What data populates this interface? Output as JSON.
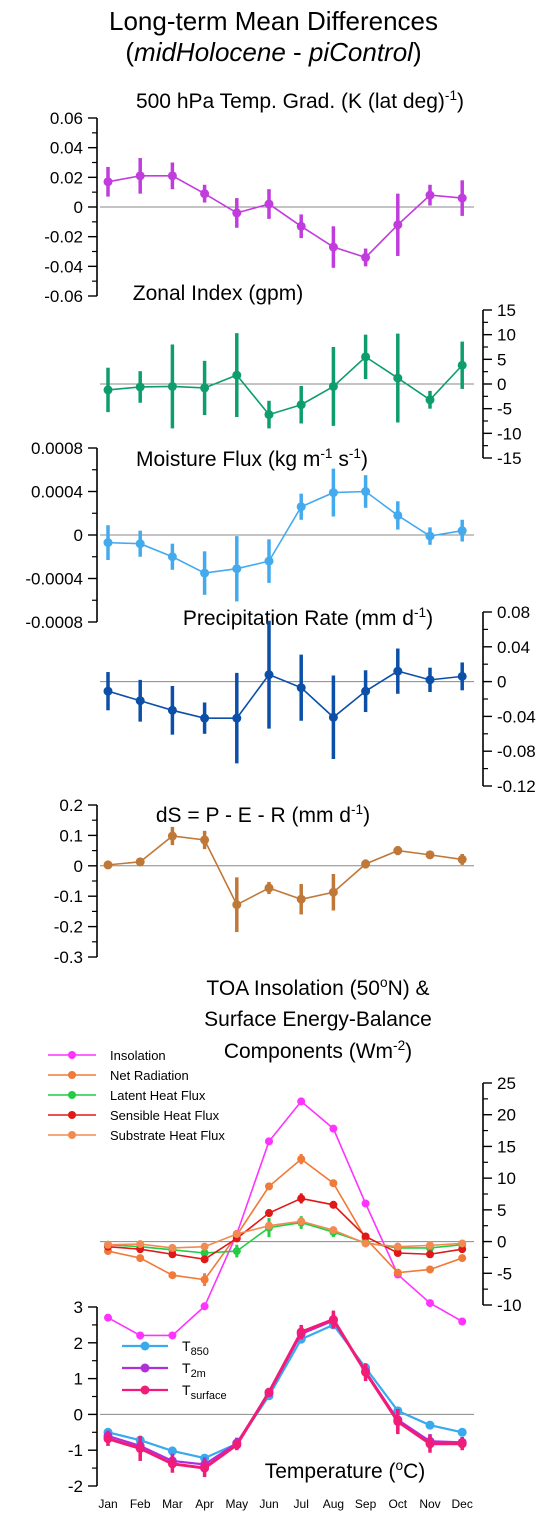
{
  "figure": {
    "title_line1": "Long-term Mean Differences",
    "title_line2": "(midHolocene - piControl)"
  },
  "months": [
    "Jan",
    "Feb",
    "Mar",
    "Apr",
    "May",
    "Jun",
    "Jul",
    "Aug",
    "Sep",
    "Oct",
    "Nov",
    "Dec"
  ],
  "chart_data": [
    {
      "id": "temp_grad",
      "type": "line",
      "title": "500 hPa Temp. Grad. (K (lat deg)-1)",
      "ylim": [
        -0.06,
        0.06
      ],
      "yticks": [
        -0.06,
        -0.04,
        -0.02,
        0,
        0.02,
        0.04,
        0.06
      ],
      "ytick_labels": [
        "-0.06",
        "-0.04",
        "-0.02",
        "0",
        "0.02",
        "0.04",
        "0.06"
      ],
      "axis_side": "left",
      "color": "#c03cdc",
      "values": [
        0.017,
        0.021,
        0.021,
        0.009,
        -0.004,
        0.002,
        -0.013,
        -0.027,
        -0.034,
        -0.012,
        0.008,
        0.006
      ],
      "err": [
        0.01,
        0.012,
        0.009,
        0.006,
        0.01,
        0.01,
        0.008,
        0.014,
        0.006,
        0.021,
        0.007,
        0.012
      ]
    },
    {
      "id": "zonal_index",
      "type": "line",
      "title": "Zonal Index (gpm)",
      "ylim": [
        -15,
        15
      ],
      "yticks": [
        -15,
        -10,
        -5,
        0,
        5,
        10,
        15
      ],
      "ytick_labels": [
        "-15",
        "-10",
        "-5",
        "0",
        "5",
        "10",
        "15"
      ],
      "axis_side": "right",
      "color": "#0e9e6e",
      "values": [
        -1.2,
        -0.6,
        -0.5,
        -0.8,
        1.8,
        -6.2,
        -4.2,
        -0.5,
        5.5,
        1.2,
        -3.2,
        3.8
      ],
      "err": [
        4.5,
        3.2,
        8.5,
        5.5,
        8.5,
        2.8,
        3.8,
        8.0,
        4.5,
        9.0,
        1.8,
        4.8
      ]
    },
    {
      "id": "moisture_flux",
      "type": "line",
      "title": "Moisture Flux (kg m-1 s-1)",
      "ylim": [
        -0.0008,
        0.0008
      ],
      "yticks": [
        -0.0008,
        -0.0004,
        0,
        0.0004,
        0.0008
      ],
      "ytick_labels": [
        "-0.0008",
        "-0.0004",
        "0",
        "0.0004",
        "0.0008"
      ],
      "axis_side": "left",
      "color": "#44aaee",
      "values": [
        -7e-05,
        -8e-05,
        -0.0002,
        -0.00035,
        -0.00031,
        -0.00024,
        0.00026,
        0.00039,
        0.0004,
        0.00018,
        -1e-05,
        4e-05
      ],
      "err": [
        0.00016,
        0.00012,
        0.00012,
        0.0002,
        0.0003,
        0.0002,
        0.00012,
        0.00022,
        0.00015,
        0.00013,
        8e-05,
        0.0001
      ]
    },
    {
      "id": "precip_rate",
      "type": "line",
      "title": "Precipitation Rate (mm d-1)",
      "ylim": [
        -0.12,
        0.08
      ],
      "yticks": [
        -0.12,
        -0.08,
        -0.04,
        0,
        0.04,
        0.08
      ],
      "ytick_labels": [
        "-0.12",
        "-0.08",
        "-0.04",
        "0",
        "0.04",
        "0.08"
      ],
      "axis_side": "right",
      "color": "#0b4fa8",
      "values": [
        -0.011,
        -0.022,
        -0.033,
        -0.042,
        -0.042,
        0.008,
        -0.007,
        -0.041,
        -0.011,
        0.012,
        0.002,
        0.006
      ],
      "err": [
        0.022,
        0.024,
        0.028,
        0.018,
        0.052,
        0.062,
        0.038,
        0.048,
        0.024,
        0.026,
        0.014,
        0.016
      ]
    },
    {
      "id": "ds",
      "type": "line",
      "title": "dS = P - E - R (mm d-1)",
      "ylim": [
        -0.3,
        0.2
      ],
      "yticks": [
        -0.3,
        -0.2,
        -0.1,
        0,
        0.1,
        0.2
      ],
      "ytick_labels": [
        "-0.3",
        "-0.2",
        "-0.1",
        "0",
        "0.1",
        "0.2"
      ],
      "axis_side": "left",
      "color": "#c07838",
      "values": [
        0.003,
        0.013,
        0.098,
        0.085,
        -0.128,
        -0.073,
        -0.11,
        -0.087,
        0.006,
        0.05,
        0.036,
        0.021
      ],
      "err": [
        0.01,
        0.012,
        0.03,
        0.03,
        0.09,
        0.02,
        0.05,
        0.06,
        0.015,
        0.015,
        0.008,
        0.018
      ]
    },
    {
      "id": "energy",
      "type": "line",
      "title_line1": "TOA Insolation (50oN) &",
      "title_line2": "Surface Energy-Balance",
      "title_line3": "Components (Wm-2)",
      "ylim": [
        -10,
        25
      ],
      "yticks": [
        -10,
        -5,
        0,
        5,
        10,
        15,
        20,
        25
      ],
      "ytick_labels": [
        "-10",
        "-5",
        "0",
        "5",
        "10",
        "15",
        "20",
        "25"
      ],
      "axis_side": "right",
      "series": [
        {
          "name": "Insolation",
          "color": "#ff33ff",
          "values": [
            -12.0,
            -14.8,
            -14.8,
            -10.2,
            1.2,
            15.8,
            22.1,
            17.8,
            6.0,
            -5.2,
            -9.7,
            -12.6
          ],
          "err": [
            0,
            0,
            0,
            0,
            0,
            0,
            0,
            0,
            0,
            0,
            0,
            0
          ]
        },
        {
          "name": "Net Radiation",
          "color": "#f07a3a",
          "values": [
            -1.5,
            -2.6,
            -5.3,
            -6.0,
            1.0,
            8.7,
            13.0,
            9.2,
            0.5,
            -4.9,
            -4.4,
            -2.6
          ],
          "err": [
            0.3,
            0.3,
            0.4,
            1.0,
            0.5,
            0.5,
            0.8,
            0.6,
            0.3,
            0.3,
            0.3,
            0.3
          ]
        },
        {
          "name": "Latent Heat Flux",
          "color": "#22cc44",
          "values": [
            -0.5,
            -0.8,
            -1.3,
            -1.8,
            -1.5,
            2.2,
            3.0,
            1.5,
            -0.2,
            -1.0,
            -1.0,
            -0.5
          ],
          "err": [
            0.5,
            0.5,
            0.6,
            0.8,
            1.0,
            1.5,
            1.0,
            0.8,
            0.5,
            0.5,
            0.5,
            0.5
          ]
        },
        {
          "name": "Sensible Heat Flux",
          "color": "#e01818",
          "values": [
            -0.8,
            -1.2,
            -2.0,
            -2.8,
            0.5,
            4.5,
            6.8,
            5.8,
            0.8,
            -1.8,
            -2.0,
            -1.2
          ],
          "err": [
            0.3,
            0.3,
            0.3,
            0.4,
            0.4,
            0.6,
            0.8,
            0.6,
            0.3,
            0.3,
            0.3,
            0.3
          ]
        },
        {
          "name": "Substrate Heat Flux",
          "color": "#f28a52",
          "values": [
            -0.5,
            -0.4,
            -1.0,
            -0.8,
            1.2,
            2.5,
            3.2,
            1.8,
            -0.3,
            -0.8,
            -0.6,
            -0.3
          ],
          "err": [
            0.3,
            0.3,
            0.3,
            0.4,
            0.4,
            0.4,
            0.4,
            0.4,
            0.3,
            0.3,
            0.3,
            0.3
          ]
        }
      ]
    },
    {
      "id": "temperature",
      "type": "line",
      "title": "Temperature (oC)",
      "ylim": [
        -2,
        3
      ],
      "yticks": [
        -2,
        -1,
        0,
        1,
        2,
        3
      ],
      "ytick_labels": [
        "-2",
        "-1",
        "0",
        "1",
        "2",
        "3"
      ],
      "axis_side": "left",
      "series": [
        {
          "name": "T850",
          "color": "#3aaaee",
          "values": [
            -0.5,
            -0.72,
            -1.02,
            -1.22,
            -0.82,
            0.52,
            2.1,
            2.5,
            1.3,
            0.1,
            -0.3,
            -0.5
          ],
          "err": [
            0.08,
            0.08,
            0.08,
            0.08,
            0.08,
            0.08,
            0.08,
            0.08,
            0.08,
            0.08,
            0.08,
            0.08
          ]
        },
        {
          "name": "T2m",
          "color": "#b030d8",
          "values": [
            -0.6,
            -0.88,
            -1.3,
            -1.4,
            -0.8,
            0.6,
            2.25,
            2.62,
            1.2,
            -0.15,
            -0.75,
            -0.78
          ],
          "err": [
            0.15,
            0.28,
            0.2,
            0.2,
            0.15,
            0.1,
            0.15,
            0.2,
            0.2,
            0.3,
            0.2,
            0.15
          ]
        },
        {
          "name": "Tsurface",
          "color": "#f01c78",
          "values": [
            -0.68,
            -0.95,
            -1.38,
            -1.5,
            -0.85,
            0.62,
            2.3,
            2.65,
            1.18,
            -0.2,
            -0.82,
            -0.82
          ],
          "err": [
            0.2,
            0.35,
            0.25,
            0.25,
            0.15,
            0.12,
            0.2,
            0.25,
            0.25,
            0.35,
            0.25,
            0.18
          ]
        }
      ]
    }
  ],
  "legend_energy": [
    "Insolation",
    "Net Radiation",
    "Latent Heat Flux",
    "Sensible Heat Flux",
    "Substrate Heat Flux"
  ],
  "legend_temp": [
    "T850",
    "T2m",
    "Tsurface"
  ]
}
